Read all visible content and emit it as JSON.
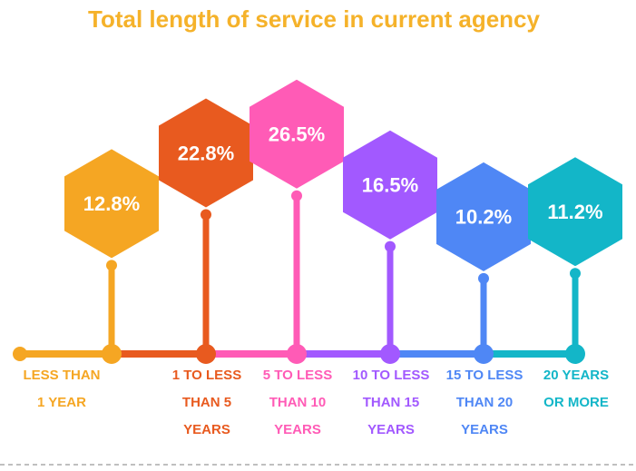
{
  "chart_data": {
    "type": "bar",
    "title": "Total length of service in current agency",
    "title_color": "#F5B22A",
    "categories": [
      [
        "LESS THAN",
        "1 YEAR"
      ],
      [
        "1 TO LESS",
        "THAN 5",
        "YEARS"
      ],
      [
        "5 TO LESS",
        "THAN 10",
        "YEARS"
      ],
      [
        "10 TO LESS",
        "THAN 15",
        "YEARS"
      ],
      [
        "15 TO LESS",
        "THAN 20",
        "YEARS"
      ],
      [
        "20 YEARS",
        "OR MORE"
      ]
    ],
    "values": [
      12.8,
      22.8,
      26.5,
      16.5,
      10.2,
      11.2
    ],
    "value_labels": [
      "12.8%",
      "22.8%",
      "26.5%",
      "16.5%",
      "10.2%",
      "11.2%"
    ],
    "colors": [
      "#F5A623",
      "#E85A1F",
      "#FF5BB6",
      "#A259FF",
      "#4F87F5",
      "#13B6C8"
    ],
    "timeline_color": "#F5A623",
    "grid": false,
    "legend": "none"
  }
}
